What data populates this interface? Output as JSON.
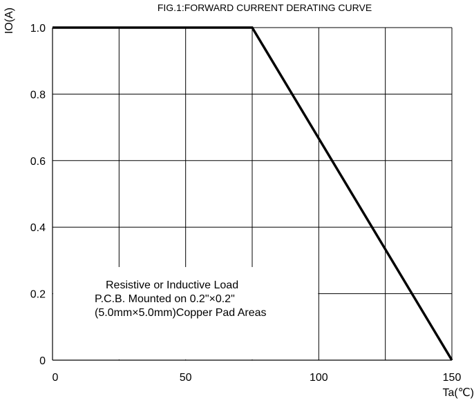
{
  "chart_data": {
    "type": "line",
    "title": "FIG.1:FORWARD CURRENT  DERATING CURVE",
    "xlabel": "Ta(℃)",
    "ylabel": "IO(A)",
    "xlim": [
      0,
      150
    ],
    "ylim": [
      0,
      1.0
    ],
    "x_ticks": [
      0,
      50,
      100,
      150
    ],
    "y_ticks": [
      0,
      0.2,
      0.4,
      0.6,
      0.8,
      1.0
    ],
    "x_tick_labels": [
      "0",
      "50",
      "100",
      "150"
    ],
    "y_tick_labels": [
      "0",
      "0.2",
      "0.4",
      "0.6",
      "0.8",
      "1.0"
    ],
    "x_gridlines": [
      25,
      50,
      75,
      100,
      125,
      150
    ],
    "y_gridlines": [
      0.2,
      0.4,
      0.6,
      0.8,
      1.0
    ],
    "grid": true,
    "series": [
      {
        "x": [
          0,
          75,
          150
        ],
        "y": [
          1.0,
          1.0,
          0
        ],
        "color": "#000000"
      }
    ],
    "annotations": [
      "Resistive or Inductive Load",
      "P.C.B. Mounted on 0.2\"×0.2\"",
      "(5.0mm×5.0mm)Copper Pad Areas"
    ]
  }
}
